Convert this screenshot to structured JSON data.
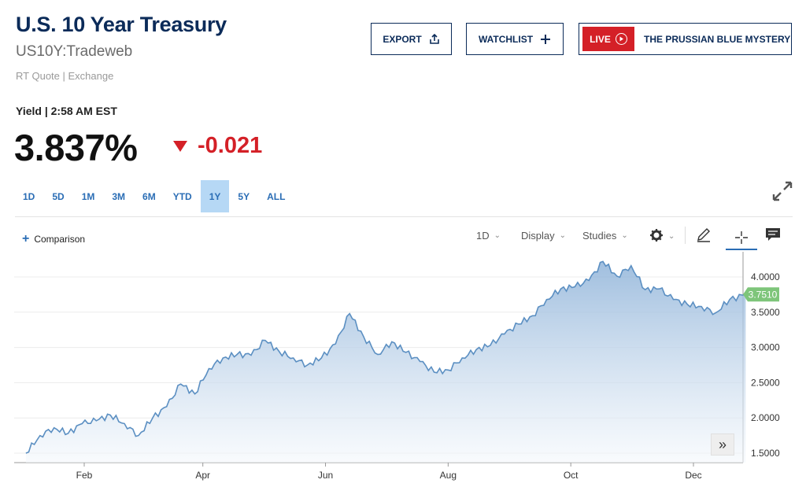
{
  "header": {
    "title": "U.S. 10 Year Treasury",
    "symbol": "US10Y:Tradeweb",
    "quote_source": "RT Quote | Exchange"
  },
  "buttons": {
    "export": "EXPORT",
    "watchlist": "WATCHLIST",
    "live_badge": "LIVE",
    "live_title": "THE PRUSSIAN BLUE MYSTERY"
  },
  "quote": {
    "label": "Yield | 2:58 AM EST",
    "price": "3.837%",
    "change": "-0.021",
    "change_direction": "down"
  },
  "ranges": {
    "items": [
      "1D",
      "5D",
      "1M",
      "3M",
      "6M",
      "YTD",
      "1Y",
      "5Y",
      "ALL"
    ],
    "active": "1Y"
  },
  "toolbar": {
    "comparison": "Comparison",
    "interval": "1D",
    "display": "Display",
    "studies": "Studies"
  },
  "colors": {
    "brand_navy": "#0b2b59",
    "accent_blue": "#2a6db5",
    "down_red": "#d42027",
    "line": "#5b8fc2",
    "last_price_tag": "#7ec57a"
  },
  "icons": [
    "export-icon",
    "plus-icon",
    "play-circle-icon",
    "down-triangle-icon",
    "expand-icon",
    "gear-icon",
    "pencil-icon",
    "crosshair-icon",
    "comment-icon",
    "double-chevron-right-icon"
  ],
  "chart_data": {
    "type": "area",
    "title": "",
    "xlabel": "",
    "ylabel": "",
    "x_ticks": [
      "Feb",
      "Apr",
      "Jun",
      "Aug",
      "Oct",
      "Dec"
    ],
    "y_ticks": [
      "4.0000",
      "3.5000",
      "3.0000",
      "2.5000",
      "2.0000",
      "1.5000"
    ],
    "ylim": [
      1.4,
      4.2
    ],
    "last_value_label": "3.7510",
    "grid": true,
    "series": [
      {
        "x": [
          "2022-01-03",
          "2022-01-10",
          "2022-01-17",
          "2022-01-24",
          "2022-01-31",
          "2022-02-07",
          "2022-02-14",
          "2022-02-21",
          "2022-02-28",
          "2022-03-07",
          "2022-03-14",
          "2022-03-21",
          "2022-03-28",
          "2022-04-04",
          "2022-04-11",
          "2022-04-18",
          "2022-04-25",
          "2022-05-02",
          "2022-05-09",
          "2022-05-16",
          "2022-05-23",
          "2022-05-30",
          "2022-06-06",
          "2022-06-13",
          "2022-06-20",
          "2022-06-27",
          "2022-07-04",
          "2022-07-11",
          "2022-07-18",
          "2022-07-25",
          "2022-08-01",
          "2022-08-08",
          "2022-08-15",
          "2022-08-22",
          "2022-08-29",
          "2022-09-05",
          "2022-09-12",
          "2022-09-19",
          "2022-09-26",
          "2022-10-03",
          "2022-10-10",
          "2022-10-17",
          "2022-10-24",
          "2022-10-31",
          "2022-11-07",
          "2022-11-14",
          "2022-11-21",
          "2022-11-28",
          "2022-12-05",
          "2022-12-12",
          "2022-12-19",
          "2022-12-27"
        ],
        "values": [
          1.5,
          1.75,
          1.86,
          1.78,
          1.92,
          1.96,
          2.04,
          1.92,
          1.75,
          2.0,
          2.16,
          2.48,
          2.34,
          2.7,
          2.85,
          2.9,
          2.89,
          3.1,
          2.94,
          2.85,
          2.75,
          2.85,
          3.05,
          3.48,
          3.15,
          2.9,
          3.08,
          2.93,
          2.8,
          2.65,
          2.68,
          2.85,
          2.97,
          3.03,
          3.19,
          3.33,
          3.45,
          3.68,
          3.83,
          3.86,
          3.95,
          4.22,
          4.01,
          4.16,
          3.82,
          3.83,
          3.68,
          3.61,
          3.58,
          3.49,
          3.68,
          3.75
        ]
      }
    ]
  }
}
